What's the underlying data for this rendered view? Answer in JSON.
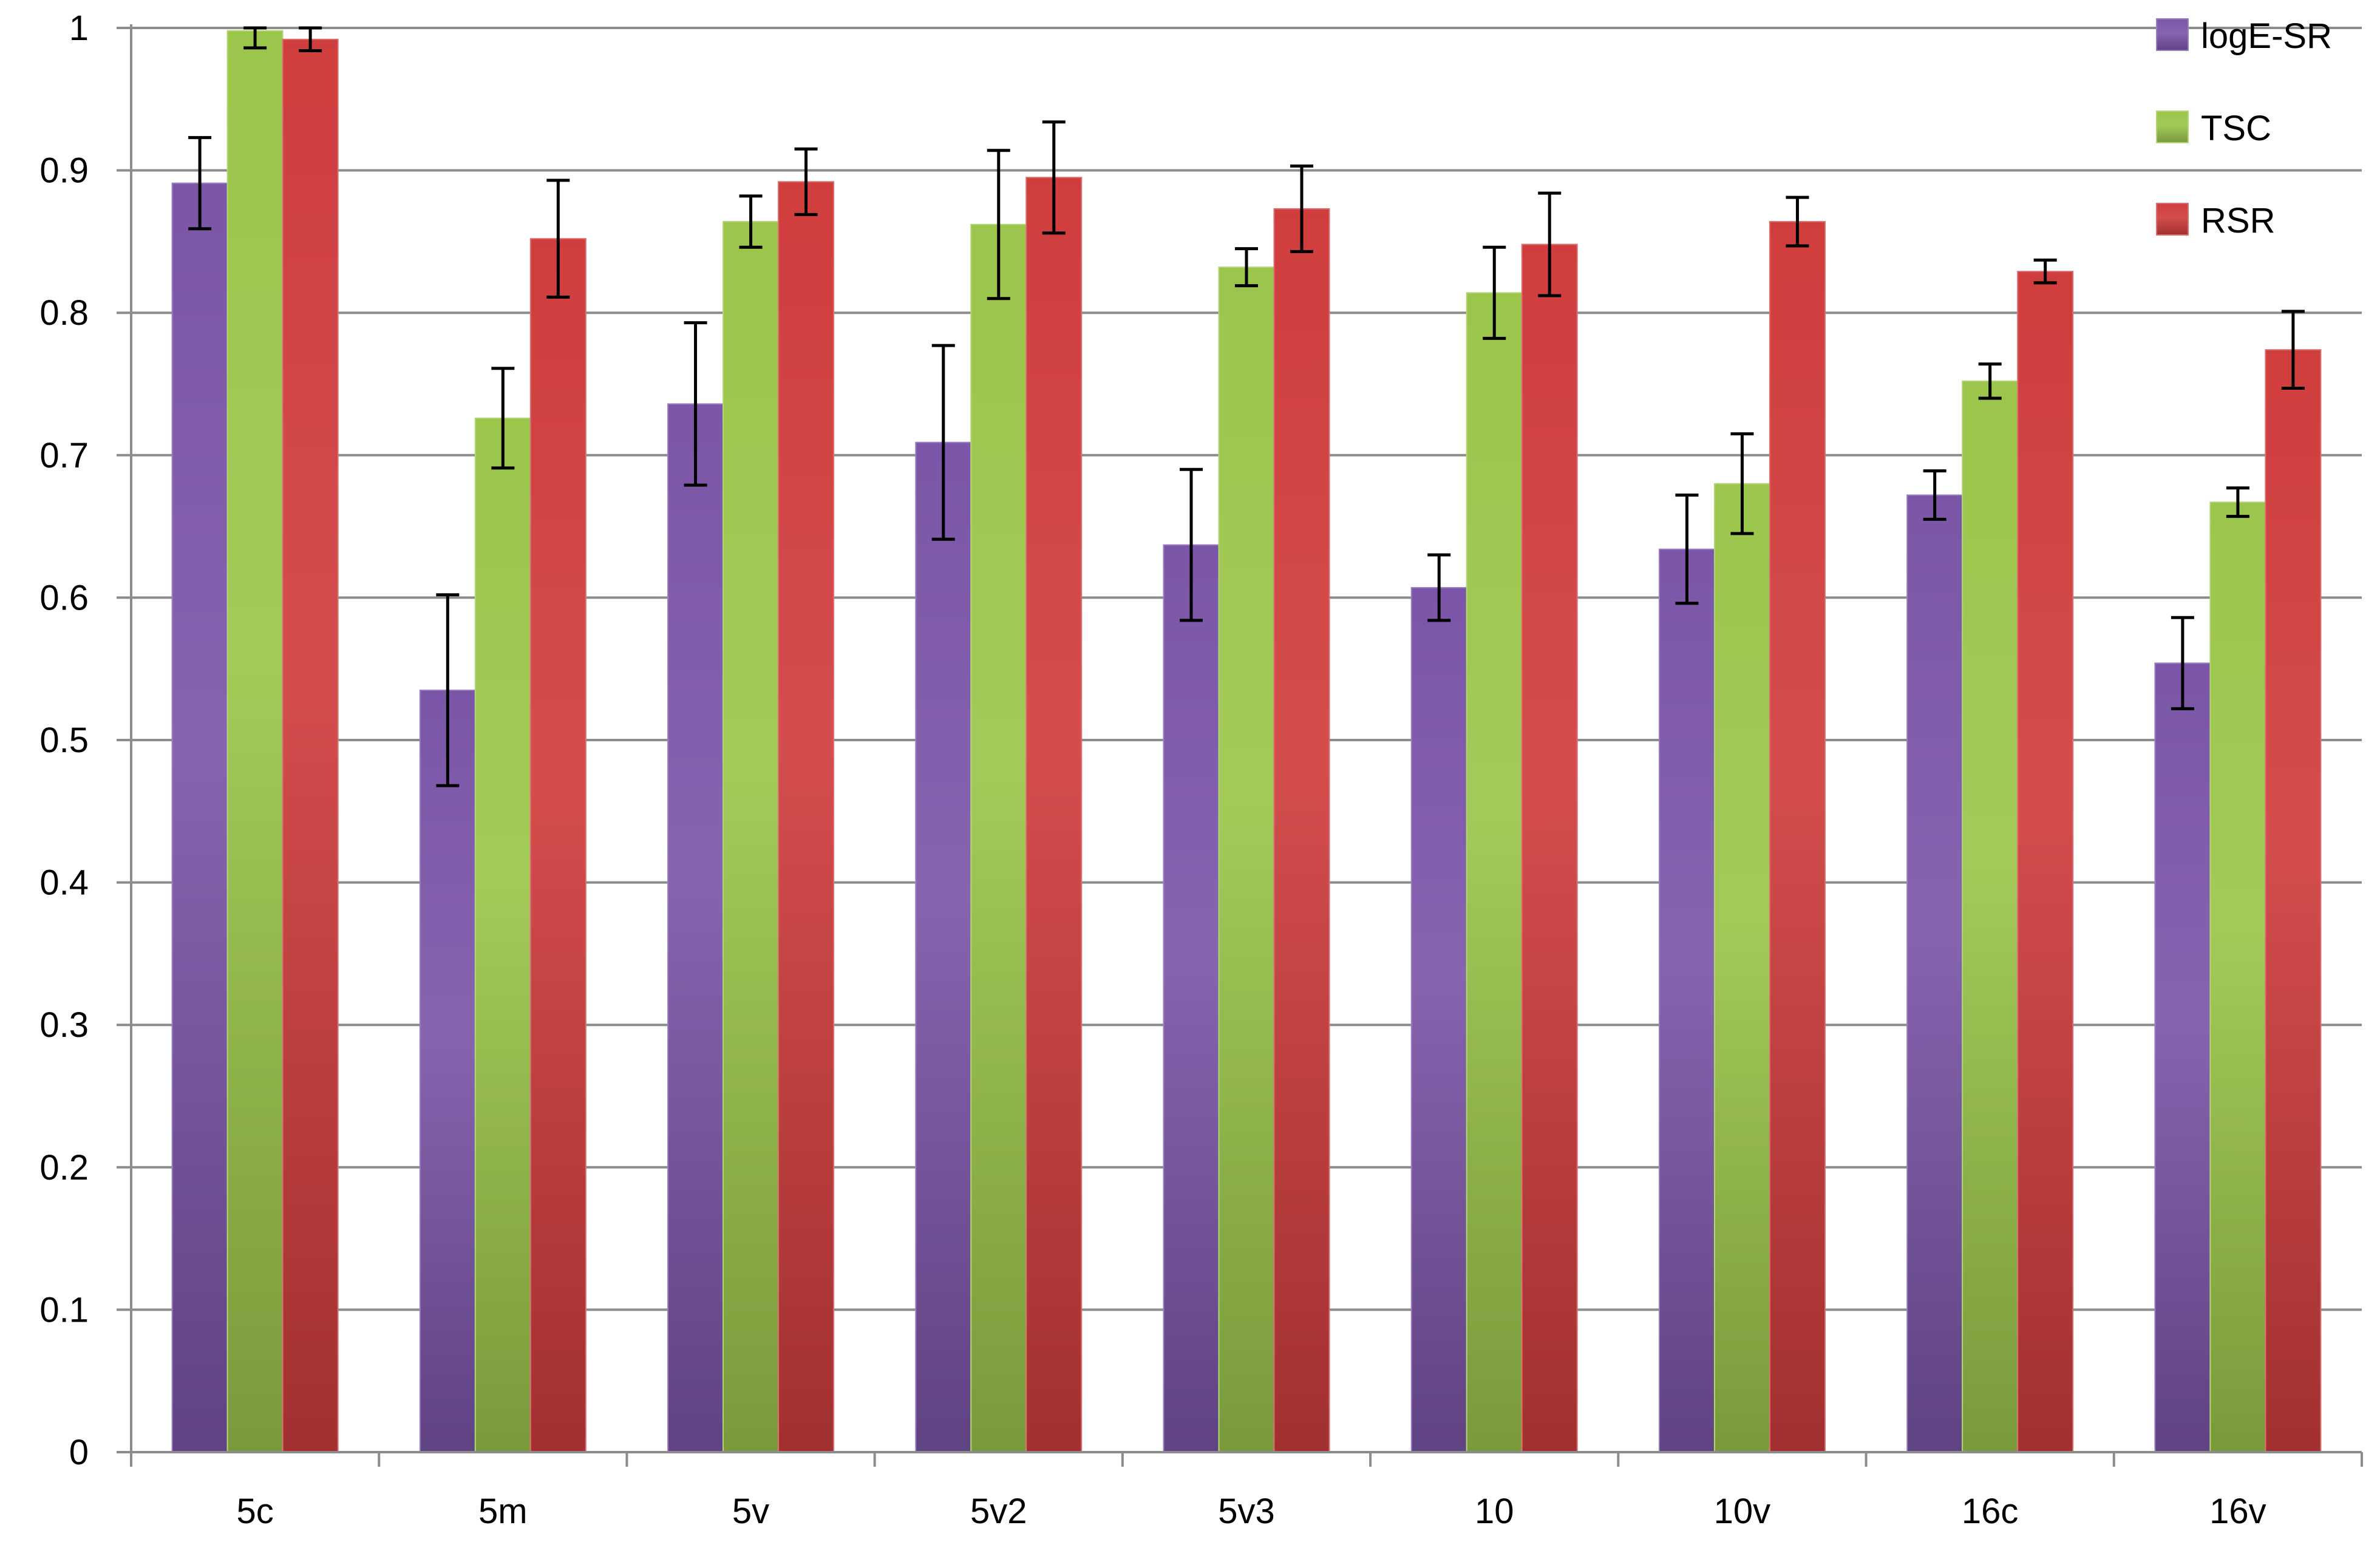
{
  "chart_data": {
    "type": "bar",
    "title": "",
    "xlabel": "",
    "ylabel": "",
    "ylim": [
      0,
      1
    ],
    "yticks": [
      "0",
      "0.1",
      "0.2",
      "0.3",
      "0.4",
      "0.5",
      "0.6",
      "0.7",
      "0.8",
      "0.9",
      "1"
    ],
    "grid": "horizontal",
    "legend_position": "top-right",
    "categories": [
      "5c",
      "5m",
      "5v",
      "5v2",
      "5v3",
      "10",
      "10v",
      "16c",
      "16v"
    ],
    "series": [
      {
        "name": "logE-SR",
        "color": "#7B56A8",
        "values": [
          0.891,
          0.535,
          0.736,
          0.709,
          0.637,
          0.607,
          0.634,
          0.672,
          0.554
        ],
        "errors": [
          0.032,
          0.067,
          0.057,
          0.068,
          0.053,
          0.023,
          0.038,
          0.017,
          0.032
        ]
      },
      {
        "name": "TSC",
        "color": "#9BC54B",
        "values": [
          0.998,
          0.726,
          0.864,
          0.862,
          0.832,
          0.814,
          0.68,
          0.752,
          0.667
        ],
        "errors": [
          0.012,
          0.035,
          0.018,
          0.052,
          0.013,
          0.032,
          0.035,
          0.012,
          0.01
        ]
      },
      {
        "name": "RSR",
        "color": "#D03D3D",
        "values": [
          0.992,
          0.852,
          0.892,
          0.895,
          0.873,
          0.848,
          0.864,
          0.829,
          0.774
        ],
        "errors": [
          0.008,
          0.041,
          0.023,
          0.039,
          0.03,
          0.036,
          0.017,
          0.008,
          0.027
        ]
      }
    ]
  }
}
